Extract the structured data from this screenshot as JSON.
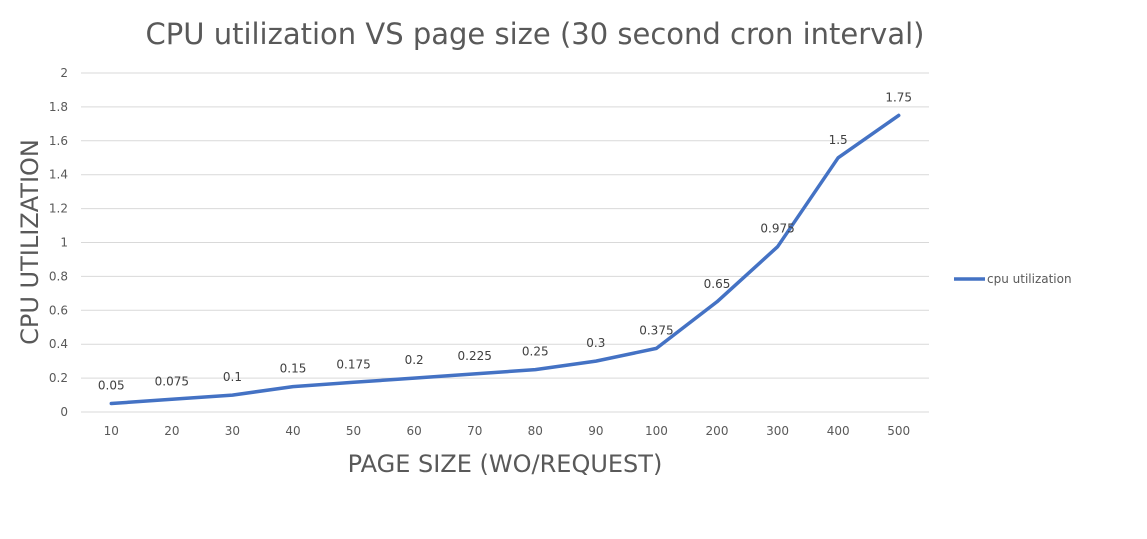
{
  "chart_data": {
    "type": "line",
    "title": "CPU utilization VS page size (30 second cron interval)",
    "xlabel": "PAGE SIZE (WO/REQUEST)",
    "ylabel": "CPU UTILIZATION",
    "categories": [
      "10",
      "20",
      "30",
      "40",
      "50",
      "60",
      "70",
      "80",
      "90",
      "100",
      "200",
      "300",
      "400",
      "500"
    ],
    "series": [
      {
        "name": "cpu utilization",
        "values": [
          0.05,
          0.075,
          0.1,
          0.15,
          0.175,
          0.2,
          0.225,
          0.25,
          0.3,
          0.375,
          0.65,
          0.975,
          1.5,
          1.75
        ],
        "data_labels": [
          "0.05",
          "0.075",
          "0.1",
          "0.15",
          "0.175",
          "0.2",
          "0.225",
          "0.25",
          "0.3",
          "0.375",
          "0.65",
          "0.975",
          "1.5",
          "1.75"
        ],
        "color": "#4472c4"
      }
    ],
    "ylim": [
      0,
      2
    ],
    "yticks": [
      "0",
      "0.2",
      "0.4",
      "0.6",
      "0.8",
      "1",
      "1.2",
      "1.4",
      "1.6",
      "1.8",
      "2"
    ],
    "grid": true,
    "legend_position": "right"
  }
}
